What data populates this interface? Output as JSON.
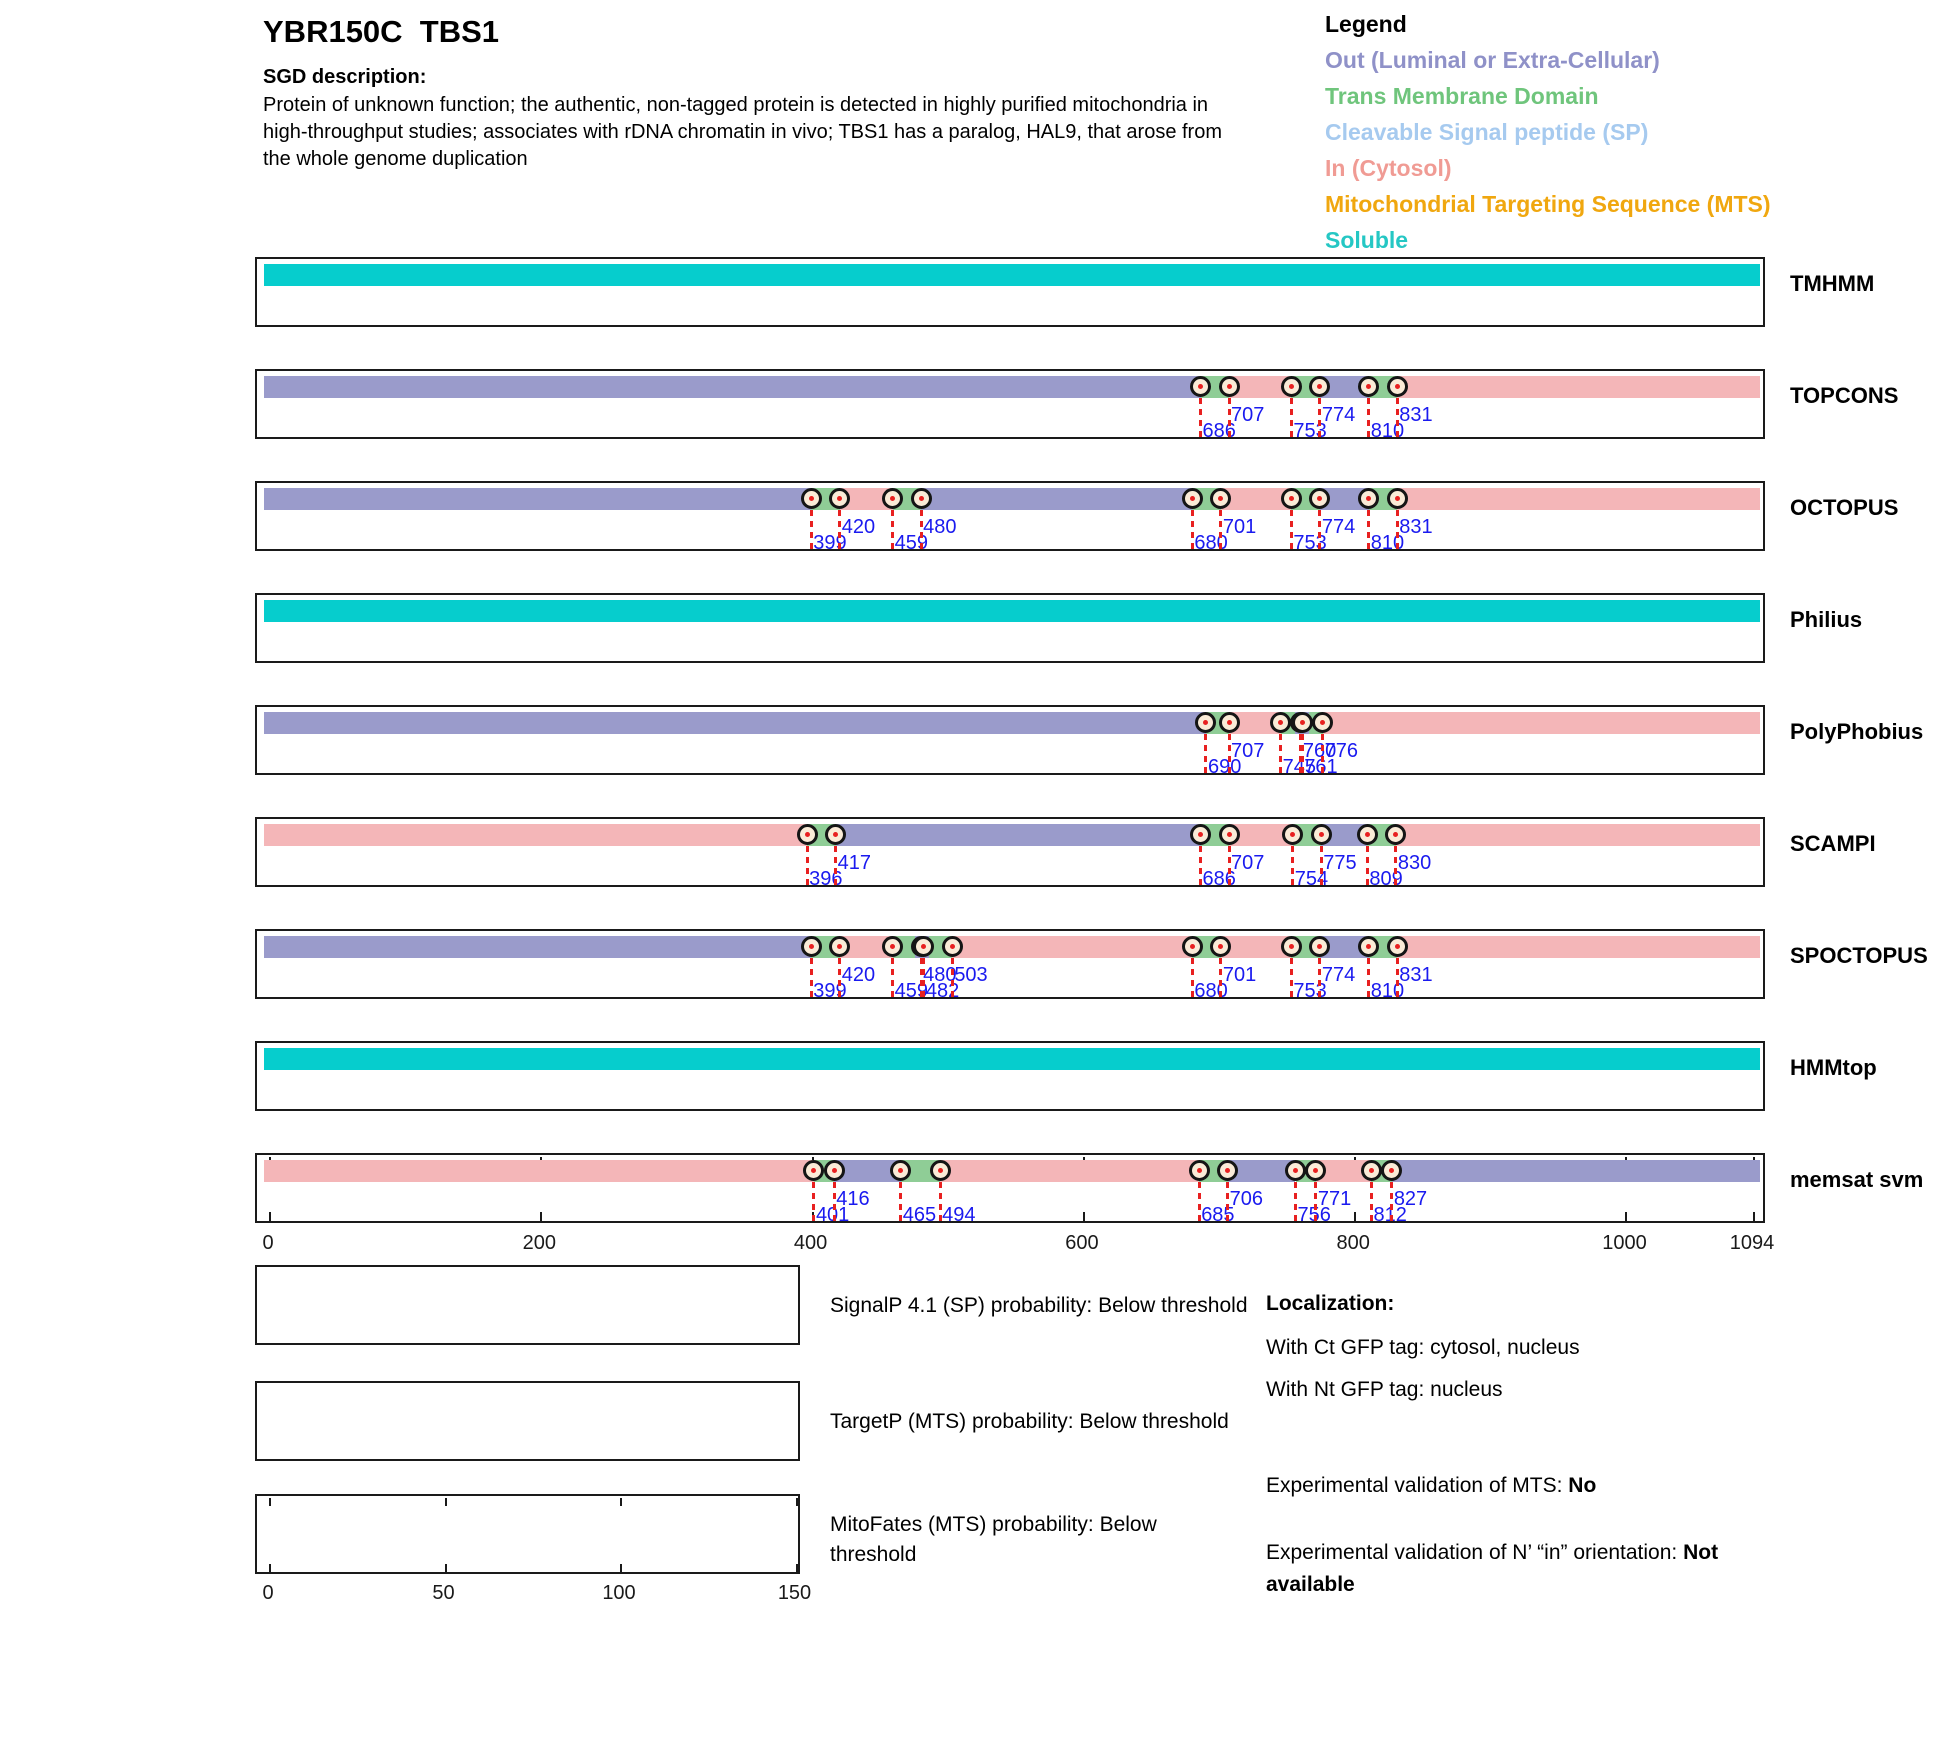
{
  "header": {
    "title": "YBR150C  TBS1",
    "sgd_label": "SGD description:",
    "description_lines": [
      "Protein of unknown function; the authentic, non-tagged protein is detected in highly purified mitochondria in",
      "high-throughput studies; associates with rDNA chromatin in vivo; TBS1 has a paralog, HAL9, that arose from",
      "the whole genome duplication"
    ]
  },
  "legend": {
    "title": "Legend",
    "items": [
      {
        "label": "Out (Luminal or Extra-Cellular)",
        "color": "#8F91C8"
      },
      {
        "label": "Trans Membrane Domain",
        "color": "#6FC57C"
      },
      {
        "label": "Cleavable Signal peptide (SP)",
        "color": "#A6CAEF"
      },
      {
        "label": "In (Cytosol)",
        "color": "#F09B94"
      },
      {
        "label": "Mitochondrial Targeting Sequence (MTS)",
        "color": "#F0A70F"
      },
      {
        "label": "Soluble",
        "color": "#25C7C4"
      }
    ]
  },
  "chart_data": {
    "type": "topology-tracks",
    "protein": "YBR150C TBS1",
    "x_axis": {
      "min": 0,
      "max": 1094,
      "ticks": [
        0,
        200,
        400,
        600,
        800,
        1000,
        1094
      ]
    },
    "colors": {
      "out": "#9A9BCB",
      "tm": "#8FCD96",
      "in": "#F4B6B8",
      "soluble": "#06CDCD",
      "transition_number": "#1A1AEF",
      "transition_line": "#E82020",
      "marker_fill": "#FAEBD7",
      "marker_border": "#151515"
    },
    "tracks": [
      {
        "name": "TMHMM",
        "segments": [
          {
            "t": "soluble",
            "s": 0,
            "e": 1094
          }
        ],
        "transitions": []
      },
      {
        "name": "TOPCONS",
        "segments": [
          {
            "t": "out",
            "s": 0,
            "e": 686
          },
          {
            "t": "tm",
            "s": 686,
            "e": 707
          },
          {
            "t": "in",
            "s": 707,
            "e": 753
          },
          {
            "t": "tm",
            "s": 753,
            "e": 774
          },
          {
            "t": "out",
            "s": 774,
            "e": 810
          },
          {
            "t": "tm",
            "s": 810,
            "e": 831
          },
          {
            "t": "in",
            "s": 831,
            "e": 1094
          }
        ],
        "transitions": [
          {
            "pos": 686,
            "row": "low"
          },
          {
            "pos": 707,
            "row": "high"
          },
          {
            "pos": 753,
            "row": "low"
          },
          {
            "pos": 774,
            "row": "high"
          },
          {
            "pos": 810,
            "row": "low"
          },
          {
            "pos": 831,
            "row": "high"
          }
        ]
      },
      {
        "name": "OCTOPUS",
        "segments": [
          {
            "t": "out",
            "s": 0,
            "e": 399
          },
          {
            "t": "tm",
            "s": 399,
            "e": 420
          },
          {
            "t": "in",
            "s": 420,
            "e": 459
          },
          {
            "t": "tm",
            "s": 459,
            "e": 480
          },
          {
            "t": "out",
            "s": 480,
            "e": 680
          },
          {
            "t": "tm",
            "s": 680,
            "e": 701
          },
          {
            "t": "in",
            "s": 701,
            "e": 753
          },
          {
            "t": "tm",
            "s": 753,
            "e": 774
          },
          {
            "t": "out",
            "s": 774,
            "e": 810
          },
          {
            "t": "tm",
            "s": 810,
            "e": 831
          },
          {
            "t": "in",
            "s": 831,
            "e": 1094
          }
        ],
        "transitions": [
          {
            "pos": 399,
            "row": "low"
          },
          {
            "pos": 420,
            "row": "high"
          },
          {
            "pos": 459,
            "row": "low"
          },
          {
            "pos": 480,
            "row": "high"
          },
          {
            "pos": 680,
            "row": "low"
          },
          {
            "pos": 701,
            "row": "high"
          },
          {
            "pos": 753,
            "row": "low"
          },
          {
            "pos": 774,
            "row": "high"
          },
          {
            "pos": 810,
            "row": "low"
          },
          {
            "pos": 831,
            "row": "high"
          }
        ]
      },
      {
        "name": "Philius",
        "segments": [
          {
            "t": "soluble",
            "s": 0,
            "e": 1094
          }
        ],
        "transitions": []
      },
      {
        "name": "PolyPhobius",
        "segments": [
          {
            "t": "out",
            "s": 0,
            "e": 690
          },
          {
            "t": "tm",
            "s": 690,
            "e": 707
          },
          {
            "t": "in",
            "s": 707,
            "e": 745
          },
          {
            "t": "tm",
            "s": 745,
            "e": 760
          },
          {
            "t": "out",
            "s": 760,
            "e": 761
          },
          {
            "t": "tm",
            "s": 761,
            "e": 776
          },
          {
            "t": "in",
            "s": 776,
            "e": 1094
          }
        ],
        "transitions": [
          {
            "pos": 690,
            "row": "low"
          },
          {
            "pos": 707,
            "row": "high"
          },
          {
            "pos": 745,
            "row": "low"
          },
          {
            "pos": 760,
            "row": "high"
          },
          {
            "pos": 761,
            "row": "low"
          },
          {
            "pos": 776,
            "row": "high"
          }
        ]
      },
      {
        "name": "SCAMPI",
        "segments": [
          {
            "t": "in",
            "s": 0,
            "e": 396
          },
          {
            "t": "tm",
            "s": 396,
            "e": 417
          },
          {
            "t": "out",
            "s": 417,
            "e": 686
          },
          {
            "t": "tm",
            "s": 686,
            "e": 707
          },
          {
            "t": "in",
            "s": 707,
            "e": 754
          },
          {
            "t": "tm",
            "s": 754,
            "e": 775
          },
          {
            "t": "out",
            "s": 775,
            "e": 809
          },
          {
            "t": "tm",
            "s": 809,
            "e": 830
          },
          {
            "t": "in",
            "s": 830,
            "e": 1094
          }
        ],
        "transitions": [
          {
            "pos": 396,
            "row": "low"
          },
          {
            "pos": 417,
            "row": "high"
          },
          {
            "pos": 686,
            "row": "low"
          },
          {
            "pos": 707,
            "row": "high"
          },
          {
            "pos": 754,
            "row": "low"
          },
          {
            "pos": 775,
            "row": "high"
          },
          {
            "pos": 809,
            "row": "low"
          },
          {
            "pos": 830,
            "row": "high"
          }
        ]
      },
      {
        "name": "SPOCTOPUS",
        "segments": [
          {
            "t": "out",
            "s": 0,
            "e": 399
          },
          {
            "t": "tm",
            "s": 399,
            "e": 420
          },
          {
            "t": "in",
            "s": 420,
            "e": 459
          },
          {
            "t": "tm",
            "s": 459,
            "e": 480
          },
          {
            "t": "out",
            "s": 480,
            "e": 482
          },
          {
            "t": "tm",
            "s": 482,
            "e": 503
          },
          {
            "t": "in",
            "s": 503,
            "e": 680
          },
          {
            "t": "tm",
            "s": 680,
            "e": 701
          },
          {
            "t": "in",
            "s": 701,
            "e": 753
          },
          {
            "t": "tm",
            "s": 753,
            "e": 774
          },
          {
            "t": "out",
            "s": 774,
            "e": 810
          },
          {
            "t": "tm",
            "s": 810,
            "e": 831
          },
          {
            "t": "in",
            "s": 831,
            "e": 1094
          }
        ],
        "transitions": [
          {
            "pos": 399,
            "row": "low"
          },
          {
            "pos": 420,
            "row": "high"
          },
          {
            "pos": 459,
            "row": "low"
          },
          {
            "pos": 480,
            "row": "high"
          },
          {
            "pos": 482,
            "row": "low"
          },
          {
            "pos": 503,
            "row": "high"
          },
          {
            "pos": 680,
            "row": "low"
          },
          {
            "pos": 701,
            "row": "high"
          },
          {
            "pos": 753,
            "row": "low"
          },
          {
            "pos": 774,
            "row": "high"
          },
          {
            "pos": 810,
            "row": "low"
          },
          {
            "pos": 831,
            "row": "high"
          }
        ]
      },
      {
        "name": "HMMtop",
        "segments": [
          {
            "t": "soluble",
            "s": 0,
            "e": 1094
          }
        ],
        "transitions": []
      },
      {
        "name": "memsat svm",
        "has_axis_ticks": true,
        "segments": [
          {
            "t": "in",
            "s": 0,
            "e": 401
          },
          {
            "t": "tm",
            "s": 401,
            "e": 416
          },
          {
            "t": "out",
            "s": 416,
            "e": 465
          },
          {
            "t": "tm",
            "s": 465,
            "e": 494
          },
          {
            "t": "in",
            "s": 494,
            "e": 685
          },
          {
            "t": "tm",
            "s": 685,
            "e": 706
          },
          {
            "t": "out",
            "s": 706,
            "e": 756
          },
          {
            "t": "tm",
            "s": 756,
            "e": 771
          },
          {
            "t": "in",
            "s": 771,
            "e": 812
          },
          {
            "t": "tm",
            "s": 812,
            "e": 827
          },
          {
            "t": "out",
            "s": 827,
            "e": 1094
          }
        ],
        "transitions": [
          {
            "pos": 401,
            "row": "low"
          },
          {
            "pos": 416,
            "row": "high"
          },
          {
            "pos": 465,
            "row": "low"
          },
          {
            "pos": 494,
            "row": "low"
          },
          {
            "pos": 685,
            "row": "low"
          },
          {
            "pos": 706,
            "row": "high"
          },
          {
            "pos": 756,
            "row": "low"
          },
          {
            "pos": 771,
            "row": "high"
          },
          {
            "pos": 812,
            "row": "low"
          },
          {
            "pos": 827,
            "row": "high"
          }
        ]
      }
    ]
  },
  "probability_panels": [
    {
      "label": "SignalP 4.1 (SP) probability: Below threshold"
    },
    {
      "label": "TargetP (MTS) probability: Below threshold"
    },
    {
      "label": "MitoFates (MTS) probability: Below threshold",
      "axis_ticks": [
        0,
        50,
        100,
        150
      ]
    }
  ],
  "localization": {
    "title": "Localization:",
    "lines": [
      "With Ct GFP tag: cytosol, nucleus",
      "With Nt GFP tag: nucleus"
    ],
    "mts_label": "Experimental validation of MTS: ",
    "mts_value": "No",
    "orientation_label": "Experimental validation of N’ “in” orientation: ",
    "orientation_value": "Not available"
  }
}
